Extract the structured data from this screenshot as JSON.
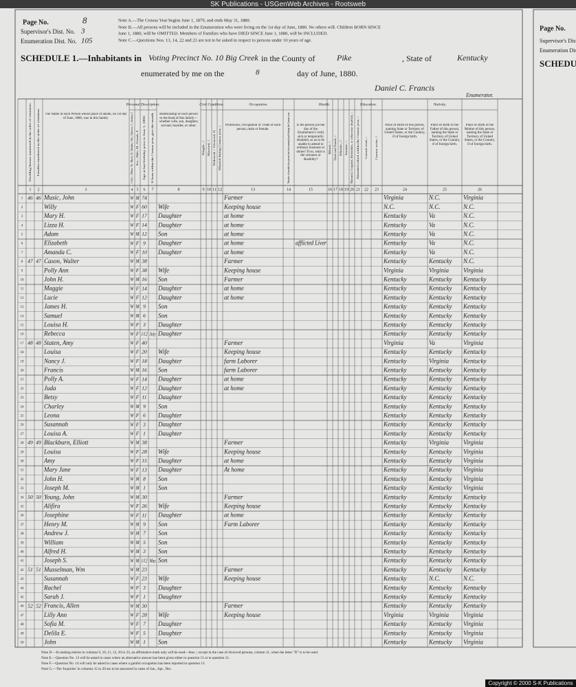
{
  "browser_title": "SK Publications - USGenWeb Archives - Rootsweb",
  "header": {
    "page_no_label": "Page No.",
    "page_no": "8",
    "supervisor_label": "Supervisor's Dist. No.",
    "supervisor": "3",
    "enumeration_label": "Enumeration Dist. No.",
    "enumeration": "105",
    "notes": [
      "Note A.—The Census Year begins June 1, 1879, and ends May 31, 1880.",
      "Note B.—All persons will be included in the Enumeration who were living on the 1st day of June, 1880. No others will. Children BORN SINCE",
      "June 1, 1880, will be OMITTED. Members of Families who have DIED SINCE June 1, 1880, will be INCLUDED.",
      "Note C.—Questions Nos. 13, 14, 22 and 23 are not to be asked in respect to persons under 10 years of age."
    ],
    "schedule": "SCHEDULE 1.—Inhabitants in",
    "place": "Voting Precinct No. 10 Big Creek",
    "county_label": "in the County of",
    "county": "Pike",
    "state_label": ", State of",
    "state": "Kentucky",
    "enumerated": "enumerated by me on the",
    "day": "8",
    "day_label": "day of June, 1880.",
    "enumerator": "Daniel C. Francis",
    "enumerator_label": "Enumerator."
  },
  "groups": [
    {
      "label": "Personal Description.",
      "from": 4,
      "to": 7
    },
    {
      "label": "Civil Condition.",
      "from": 9,
      "to": 12
    },
    {
      "label": "Occupation.",
      "from": 13,
      "to": 14
    },
    {
      "label": "Health.",
      "from": 15,
      "to": 20
    },
    {
      "label": "Education.",
      "from": 21,
      "to": 23
    },
    {
      "label": "Nativity.",
      "from": 24,
      "to": 26
    }
  ],
  "columns": [
    {
      "num": "1",
      "label": "Dwelling-houses numbered in the order of visitation."
    },
    {
      "num": "2",
      "label": "Families numbered in the order of visitation."
    },
    {
      "num": "3",
      "label": "The Name of each Person whose place of abode, on 1st day of June, 1880, was in this family."
    },
    {
      "num": "4",
      "label": "Color—White, W.; Black, B.; Mulatto, Mu.; Chinese, C.; Indian, I."
    },
    {
      "num": "5",
      "label": "Sex—Male, M.; Female, F."
    },
    {
      "num": "6",
      "label": "Age at last birthday prior to June 1, 1880."
    },
    {
      "num": "7",
      "label": "If born within the Census year, give the month."
    },
    {
      "num": "8",
      "label": "Relationship of each person to the head of this family—whether wife, son, daughter, servant, boarder, or other."
    },
    {
      "num": "9",
      "label": "Single, /."
    },
    {
      "num": "10",
      "label": "Married, /."
    },
    {
      "num": "11",
      "label": "Widowed, /. Divorced, D."
    },
    {
      "num": "12",
      "label": "Married during Census year, /."
    },
    {
      "num": "13",
      "label": "Profession, Occupation or Trade of each person, male or female."
    },
    {
      "num": "14",
      "label": "Number of months this person has been unemployed during the Census year."
    },
    {
      "num": "15",
      "label": "Is the person [on the day of the Enumerator's visit] sick or temporarily disabled, so as to be unable to attend to ordinary business or duties? If so, what is the sickness or disability?"
    },
    {
      "num": "16",
      "label": "Blind, /."
    },
    {
      "num": "17",
      "label": "Deaf and Dumb, /."
    },
    {
      "num": "18",
      "label": "Idiotic, /."
    },
    {
      "num": "19",
      "label": "Insane, /."
    },
    {
      "num": "20",
      "label": "Maimed, Crippled, Bedridden, or otherwise disabled, /."
    },
    {
      "num": "21",
      "label": "Attended school within the Census year, /."
    },
    {
      "num": "22",
      "label": "Cannot read, /."
    },
    {
      "num": "23",
      "label": "Cannot write, /."
    },
    {
      "num": "24",
      "label": "Place of Birth of this person, naming State or Territory of United States, or the Country, if of foreign birth."
    },
    {
      "num": "25",
      "label": "Place of Birth of the Father of this person, naming the State or Territory of United States, or the Country, if of foreign birth."
    },
    {
      "num": "26",
      "label": "Place of Birth of the Mother of this person, naming the State or Territory of United States, or the Country, if of foreign birth."
    }
  ],
  "rows": [
    {
      "line": "1",
      "dwelling": "46",
      "family": "46",
      "name": "Music, John",
      "color": "W",
      "sex": "M",
      "age": "74",
      "occupation": "Farmer",
      "birthplace": "Virginia",
      "father": "N.C.",
      "mother": "Virginia"
    },
    {
      "line": "2",
      "name": "Willy",
      "color": "W",
      "sex": "F",
      "age": "60",
      "relation": "Wife",
      "occupation": "Keeping house",
      "birthplace": "N.C.",
      "father": "N.C.",
      "mother": "N.C."
    },
    {
      "line": "3",
      "name": "Mary H.",
      "color": "W",
      "sex": "F",
      "age": "17",
      "relation": "Daughter",
      "occupation": "at home",
      "birthplace": "Kentucky",
      "father": "Va",
      "mother": "N.C."
    },
    {
      "line": "4",
      "name": "Lizza H.",
      "color": "W",
      "sex": "F",
      "age": "14",
      "relation": "Daughter",
      "occupation": "at home",
      "birthplace": "Kentucky",
      "father": "Va",
      "mother": "N.C."
    },
    {
      "line": "5",
      "name": "Adam",
      "color": "W",
      "sex": "M",
      "age": "12",
      "relation": "Son",
      "occupation": "at home",
      "birthplace": "Kentucky",
      "father": "Va",
      "mother": "N.C."
    },
    {
      "line": "6",
      "name": "Elizabeth",
      "color": "W",
      "sex": "F",
      "age": "9",
      "relation": "Daughter",
      "occupation": "at home",
      "sickness": "afflicted Liver",
      "birthplace": "Kentucky",
      "father": "Va",
      "mother": "N.C."
    },
    {
      "line": "7",
      "name": "Amanda C.",
      "color": "W",
      "sex": "F",
      "age": "10",
      "relation": "Daughter",
      "occupation": "at home",
      "birthplace": "Kentucky",
      "father": "Va",
      "mother": "N.C."
    },
    {
      "line": "8",
      "dwelling": "47",
      "family": "47",
      "name": "Cason, Walter",
      "color": "W",
      "sex": "M",
      "age": "38",
      "occupation": "Farmer",
      "birthplace": "Kentucky",
      "father": "Kentucky",
      "mother": "N.C."
    },
    {
      "line": "9",
      "name": "Polly Ann",
      "color": "W",
      "sex": "F",
      "age": "38",
      "relation": "Wife",
      "occupation": "Keeping house",
      "birthplace": "Virginia",
      "father": "Virginia",
      "mother": "Virginia"
    },
    {
      "line": "10",
      "name": "John H.",
      "color": "W",
      "sex": "M",
      "age": "16",
      "relation": "Son",
      "occupation": "Farmer",
      "birthplace": "Kentucky",
      "father": "Kentucky",
      "mother": "Kentucky"
    },
    {
      "line": "11",
      "name": "Maggie",
      "color": "W",
      "sex": "F",
      "age": "14",
      "relation": "Daughter",
      "occupation": "at home",
      "birthplace": "Kentucky",
      "father": "Kentucky",
      "mother": "Kentucky"
    },
    {
      "line": "12",
      "name": "Lucie",
      "color": "W",
      "sex": "F",
      "age": "12",
      "relation": "Daughter",
      "occupation": "at home",
      "birthplace": "Kentucky",
      "father": "Kentucky",
      "mother": "Kentucky"
    },
    {
      "line": "13",
      "name": "James H.",
      "color": "W",
      "sex": "M",
      "age": "9",
      "relation": "Son",
      "birthplace": "Kentucky",
      "father": "Kentucky",
      "mother": "Kentucky"
    },
    {
      "line": "14",
      "name": "Samuel",
      "color": "W",
      "sex": "M",
      "age": "6",
      "relation": "Son",
      "birthplace": "Kentucky",
      "father": "Kentucky",
      "mother": "Kentucky"
    },
    {
      "line": "15",
      "name": "Louisa H.",
      "color": "W",
      "sex": "F",
      "age": "3",
      "relation": "Daughter",
      "birthplace": "Kentucky",
      "father": "Kentucky",
      "mother": "Kentucky"
    },
    {
      "line": "16",
      "name": "Rebecca",
      "color": "W",
      "sex": "F",
      "age": "1/12",
      "month": "July",
      "relation": "Daughter",
      "birthplace": "Kentucky",
      "father": "Kentucky",
      "mother": "Kentucky"
    },
    {
      "line": "17",
      "dwelling": "48",
      "family": "48",
      "name": "Staten, Amy",
      "color": "W",
      "sex": "F",
      "age": "40",
      "occupation": "Farmer",
      "birthplace": "Virginia",
      "father": "Va",
      "mother": "Virginia"
    },
    {
      "line": "18",
      "name": "Louisa",
      "color": "W",
      "sex": "F",
      "age": "20",
      "relation": "Wife",
      "occupation": "Keeping house",
      "birthplace": "Kentucky",
      "father": "Kentucky",
      "mother": "Kentucky"
    },
    {
      "line": "19",
      "name": "Nancy J.",
      "color": "W",
      "sex": "F",
      "age": "18",
      "relation": "Daughter",
      "occupation": "farm Laborer",
      "birthplace": "Kentucky",
      "father": "Virginia",
      "mother": "Kentucky"
    },
    {
      "line": "20",
      "name": "Francis",
      "color": "W",
      "sex": "M",
      "age": "16",
      "relation": "Son",
      "occupation": "farm Laborer",
      "birthplace": "Kentucky",
      "father": "Kentucky",
      "mother": "Kentucky"
    },
    {
      "line": "21",
      "name": "Polly A.",
      "color": "W",
      "sex": "F",
      "age": "14",
      "relation": "Daughter",
      "occupation": "at home",
      "birthplace": "Kentucky",
      "father": "Kentucky",
      "mother": "Kentucky"
    },
    {
      "line": "22",
      "name": "Juda",
      "color": "W",
      "sex": "F",
      "age": "12",
      "relation": "Daughter",
      "occupation": "at home",
      "birthplace": "Kentucky",
      "father": "Kentucky",
      "mother": "Kentucky"
    },
    {
      "line": "23",
      "name": "Betsy",
      "color": "W",
      "sex": "F",
      "age": "11",
      "relation": "Daughter",
      "birthplace": "Kentucky",
      "father": "Kentucky",
      "mother": "Kentucky"
    },
    {
      "line": "24",
      "name": "Charley",
      "color": "W",
      "sex": "M",
      "age": "9",
      "relation": "Son",
      "birthplace": "Kentucky",
      "father": "Kentucky",
      "mother": "Kentucky"
    },
    {
      "line": "25",
      "name": "Leona",
      "color": "W",
      "sex": "F",
      "age": "6",
      "relation": "Daughter",
      "birthplace": "Kentucky",
      "father": "Kentucky",
      "mother": "Kentucky"
    },
    {
      "line": "26",
      "name": "Susannah",
      "color": "W",
      "sex": "F",
      "age": "3",
      "relation": "Daughter",
      "birthplace": "Kentucky",
      "father": "Kentucky",
      "mother": "Kentucky"
    },
    {
      "line": "27",
      "name": "Louisa A.",
      "color": "W",
      "sex": "F",
      "age": "1",
      "relation": "Daughter",
      "birthplace": "Kentucky",
      "father": "Kentucky",
      "mother": "Kentucky"
    },
    {
      "line": "28",
      "dwelling": "49",
      "family": "49",
      "name": "Blackburn, Elliott",
      "color": "W",
      "sex": "M",
      "age": "38",
      "occupation": "Farmer",
      "birthplace": "Kentucky",
      "father": "Virginia",
      "mother": "Virginia"
    },
    {
      "line": "29",
      "name": "Louisa",
      "color": "W",
      "sex": "F",
      "age": "28",
      "relation": "Wife",
      "occupation": "Keeping house",
      "birthplace": "Kentucky",
      "father": "Kentucky",
      "mother": "Virginia"
    },
    {
      "line": "30",
      "name": "Amy",
      "color": "W",
      "sex": "F",
      "age": "15",
      "relation": "Daughter",
      "occupation": "at home",
      "birthplace": "Kentucky",
      "father": "Kentucky",
      "mother": "Virginia"
    },
    {
      "line": "31",
      "name": "Mary Jane",
      "color": "W",
      "sex": "F",
      "age": "13",
      "relation": "Daughter",
      "occupation": "At home",
      "birthplace": "Kentucky",
      "father": "Kentucky",
      "mother": "Virginia"
    },
    {
      "line": "32",
      "name": "John H.",
      "color": "W",
      "sex": "M",
      "age": "8",
      "relation": "Son",
      "birthplace": "Kentucky",
      "father": "Kentucky",
      "mother": "Virginia"
    },
    {
      "line": "33",
      "name": "Joseph M.",
      "color": "W",
      "sex": "M",
      "age": "1",
      "relation": "Son",
      "birthplace": "Kentucky",
      "father": "Kentucky",
      "mother": "Virginia"
    },
    {
      "line": "34",
      "dwelling": "50",
      "family": "50",
      "name": "Young, John",
      "color": "W",
      "sex": "M",
      "age": "30",
      "occupation": "Farmer",
      "birthplace": "Kentucky",
      "father": "Kentucky",
      "mother": "Kentucky"
    },
    {
      "line": "35",
      "name": "Alifira",
      "color": "W",
      "sex": "F",
      "age": "26",
      "relation": "Wife",
      "occupation": "Keeping house",
      "birthplace": "Kentucky",
      "father": "Kentucky",
      "mother": "Kentucky"
    },
    {
      "line": "36",
      "name": "Josephine",
      "color": "W",
      "sex": "F",
      "age": "11",
      "relation": "Daughter",
      "occupation": "at home",
      "birthplace": "Kentucky",
      "father": "Kentucky",
      "mother": "Kentucky"
    },
    {
      "line": "37",
      "name": "Henry M.",
      "color": "W",
      "sex": "M",
      "age": "9",
      "relation": "Son",
      "occupation": "Farm Laborer",
      "birthplace": "Kentucky",
      "father": "Kentucky",
      "mother": "Kentucky"
    },
    {
      "line": "38",
      "name": "Andrew J.",
      "color": "W",
      "sex": "M",
      "age": "7",
      "relation": "Son",
      "birthplace": "Kentucky",
      "father": "Kentucky",
      "mother": "Kentucky"
    },
    {
      "line": "39",
      "name": "William",
      "color": "W",
      "sex": "M",
      "age": "5",
      "relation": "Son",
      "birthplace": "Kentucky",
      "father": "Kentucky",
      "mother": "Kentucky"
    },
    {
      "line": "40",
      "name": "Alfred H.",
      "color": "W",
      "sex": "M",
      "age": "3",
      "relation": "Son",
      "birthplace": "Kentucky",
      "father": "Kentucky",
      "mother": "Kentucky"
    },
    {
      "line": "41",
      "name": "Joseph S.",
      "color": "W",
      "sex": "M",
      "age": "1/12",
      "month": "May",
      "relation": "Son",
      "birthplace": "Kentucky",
      "father": "Kentucky",
      "mother": "Kentucky"
    },
    {
      "line": "42",
      "dwelling": "51",
      "family": "51",
      "name": "Musselman, Wm",
      "color": "W",
      "sex": "M",
      "age": "23",
      "occupation": "Farmer",
      "birthplace": "Kentucky",
      "father": "Kentucky",
      "mother": "Kentucky"
    },
    {
      "line": "43",
      "name": "Susannah",
      "color": "W",
      "sex": "F",
      "age": "23",
      "relation": "Wife",
      "occupation": "Keeping house",
      "birthplace": "Kentucky",
      "father": "N.C.",
      "mother": "N.C."
    },
    {
      "line": "44",
      "name": "Rachel",
      "color": "W",
      "sex": "F",
      "age": "3",
      "relation": "Daughter",
      "birthplace": "Kentucky",
      "father": "Kentucky",
      "mother": "Kentucky"
    },
    {
      "line": "45",
      "name": "Sarah J.",
      "color": "W",
      "sex": "F",
      "age": "1",
      "relation": "Daughter",
      "birthplace": "Kentucky",
      "father": "Kentucky",
      "mother": "Kentucky"
    },
    {
      "line": "46",
      "dwelling": "52",
      "family": "52",
      "name": "Francis, Allen",
      "color": "W",
      "sex": "M",
      "age": "30",
      "occupation": "Farmer",
      "birthplace": "Kentucky",
      "father": "Kentucky",
      "mother": "Kentucky"
    },
    {
      "line": "47",
      "name": "Lilly Ann",
      "color": "W",
      "sex": "F",
      "age": "28",
      "relation": "Wife",
      "occupation": "Keeping house",
      "birthplace": "Virginia",
      "father": "Virginia",
      "mother": "Virginia"
    },
    {
      "line": "48",
      "name": "Sofia M.",
      "color": "W",
      "sex": "F",
      "age": "7",
      "relation": "Daughter",
      "birthplace": "Kentucky",
      "father": "Kentucky",
      "mother": "Virginia"
    },
    {
      "line": "49",
      "name": "Delila E.",
      "color": "W",
      "sex": "F",
      "age": "5",
      "relation": "Daughter",
      "birthplace": "Kentucky",
      "father": "Kentucky",
      "mother": "Virginia"
    },
    {
      "line": "50",
      "name": "John",
      "color": "W",
      "sex": "M",
      "age": "1",
      "relation": "Son",
      "birthplace": "Kentucky",
      "father": "Kentucky",
      "mother": "Virginia"
    }
  ],
  "footer_notes": [
    "Note D.—In making entries in columns 9, 10, 11, 12, 20 to 23, an affirmative mark only will be used—thus /, except in the case of divorced persons, column 11, when the letter \"D\" is to be used.",
    "Note E.—Question No. 13 will be asked in cases where an alternative answer has been given either to question 15 or to question 11.",
    "Note F.—Question No. 14 will only be asked in cases where a gainful occupation has been reported in question 13.",
    "Note G.—The 'Inquiries' in columns 15 to 20 are to be answered in cases of Jan., Apr., Dec."
  ],
  "next_page": {
    "page_no_label": "Page No.",
    "supervisor_label": "Supervisor's Dist. No.",
    "enumeration_label": "Enumeration Dist.",
    "schedule": "SCHEDULE"
  },
  "copyright": "Copyright © 2000 S-K Publications"
}
